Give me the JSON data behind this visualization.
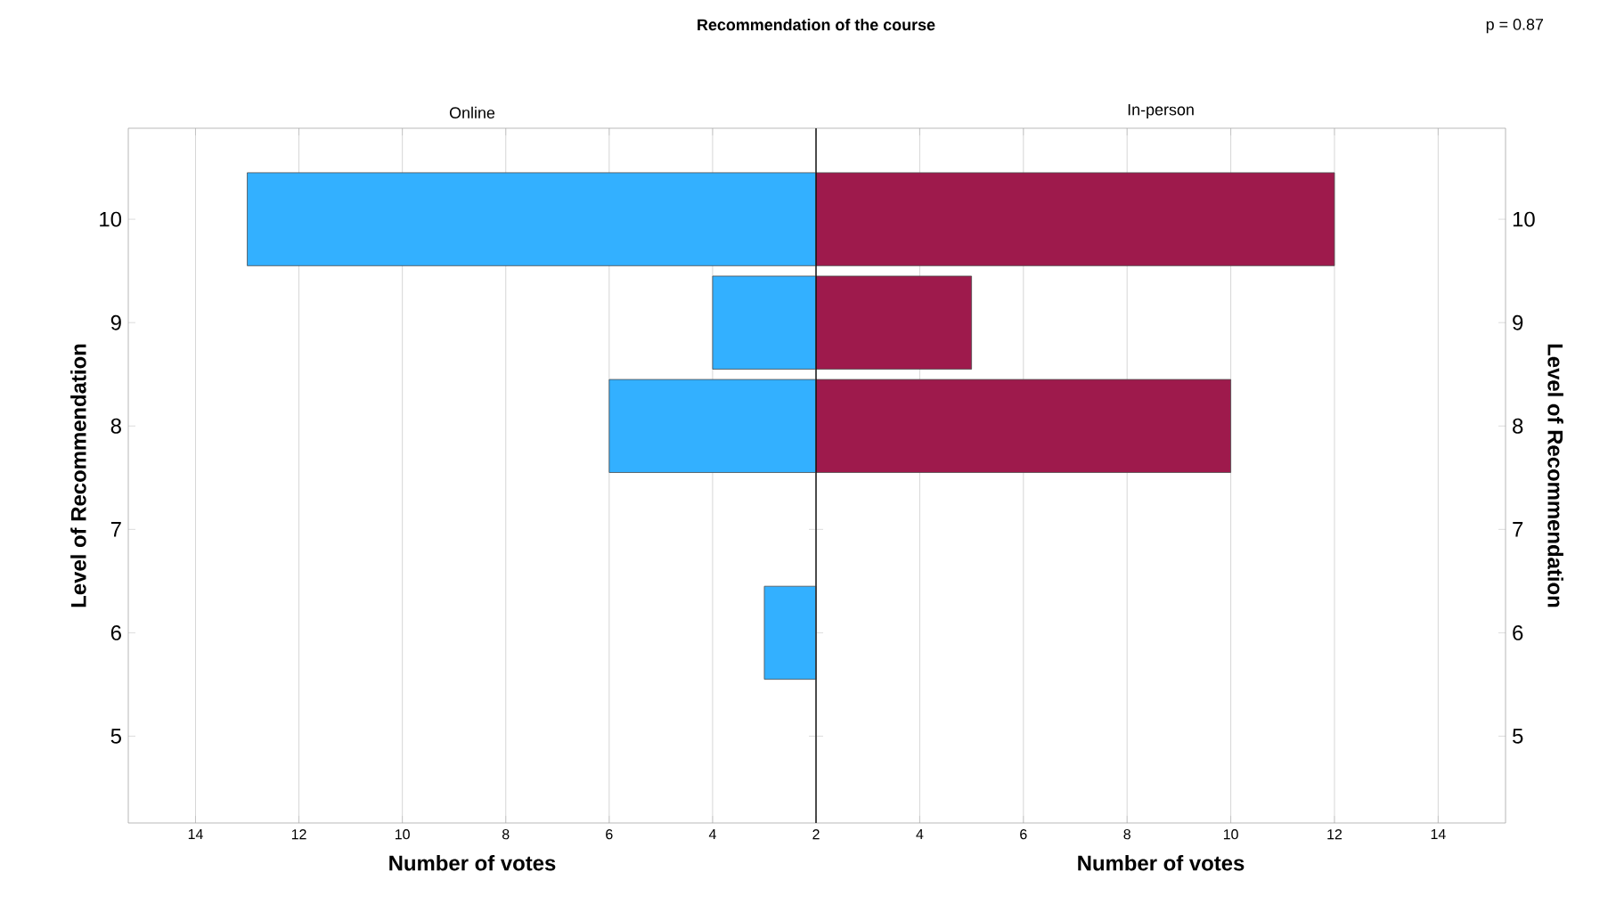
{
  "chart_data": [
    {
      "type": "bar",
      "orientation": "horizontal",
      "title": "Recommendation of the course",
      "subtitle": "Online",
      "xlabel": "Number of votes",
      "ylabel": "Level of Recommendation",
      "categories": [
        "10",
        "9",
        "8",
        "7",
        "6",
        "5"
      ],
      "series": [
        {
          "color": "#33b0ff",
          "values": [
            13,
            4,
            6,
            null,
            3,
            null
          ]
        }
      ],
      "xlim": [
        15.3,
        2
      ],
      "xticks": [
        14,
        12,
        10,
        8,
        6,
        4,
        {
          "value": 2,
          "label": null
        }
      ],
      "grid": "x"
    },
    {
      "type": "bar",
      "orientation": "horizontal",
      "subtitle": "In-person",
      "xlabel": "Number of votes",
      "ylabel": "Level of Recommendation",
      "annotations": [
        "p = 0.87"
      ],
      "categories": [
        "10",
        "9",
        "8",
        "7",
        "6",
        "5"
      ],
      "series": [
        {
          "color": "#9e1a4c",
          "values": [
            12,
            5,
            10,
            null,
            null,
            null
          ]
        }
      ],
      "xlim": [
        2,
        15.3
      ],
      "xticks": [
        2,
        4,
        6,
        8,
        10,
        12,
        14
      ],
      "grid": "x"
    }
  ]
}
